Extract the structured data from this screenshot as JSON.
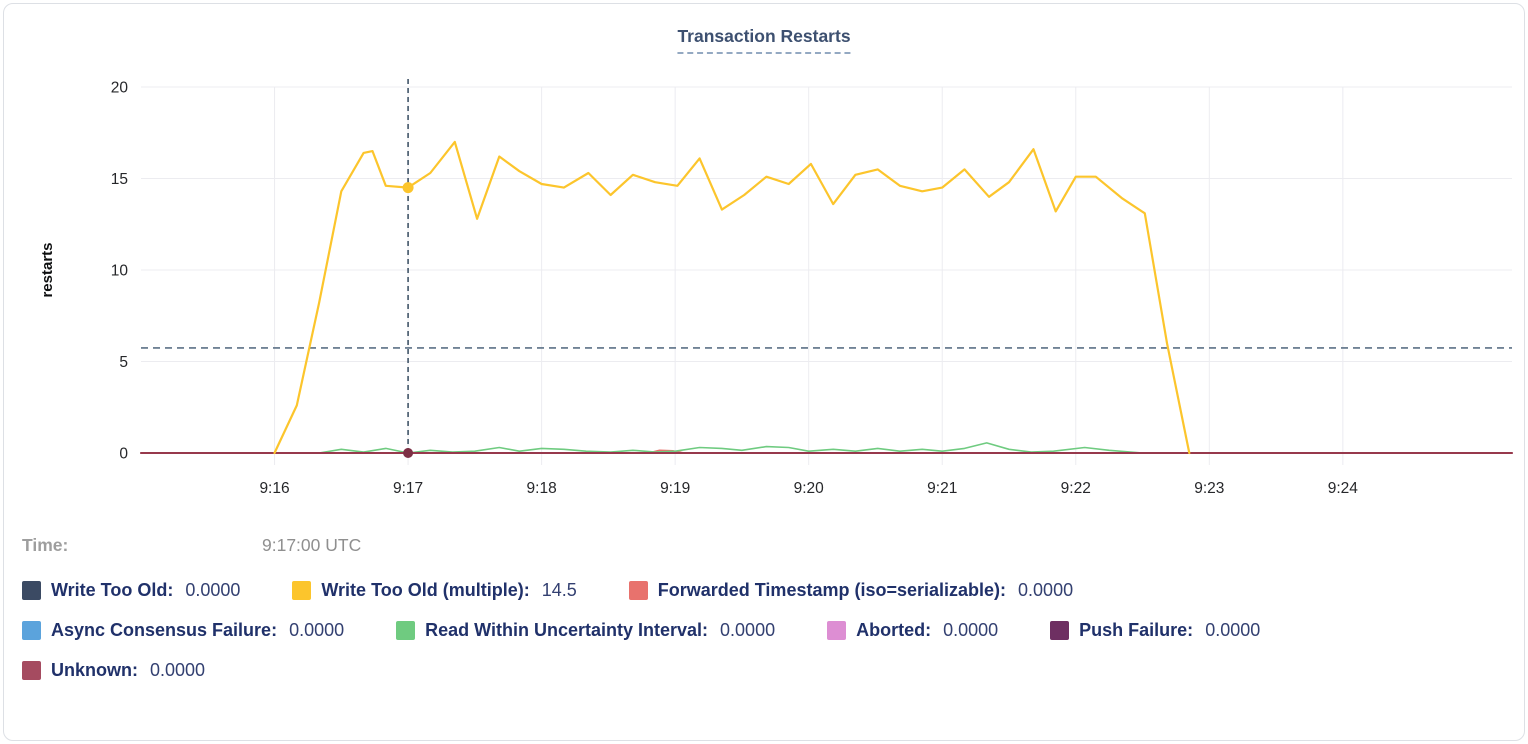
{
  "title": "Transaction Restarts",
  "chart_data": {
    "type": "line",
    "title": "Transaction Restarts",
    "xlabel": "",
    "ylabel": "restarts",
    "ylim": [
      0,
      20
    ],
    "yticks": [
      0,
      5,
      10,
      15,
      20
    ],
    "grid": true,
    "x_base_time": "9:15",
    "xlim_seconds": [
      0,
      616
    ],
    "xticks": [
      {
        "t": 60,
        "label": "9:16"
      },
      {
        "t": 120,
        "label": "9:17"
      },
      {
        "t": 180,
        "label": "9:18"
      },
      {
        "t": 240,
        "label": "9:19"
      },
      {
        "t": 300,
        "label": "9:20"
      },
      {
        "t": 360,
        "label": "9:21"
      },
      {
        "t": 420,
        "label": "9:22"
      },
      {
        "t": 480,
        "label": "9:23"
      },
      {
        "t": 540,
        "label": "9:24"
      }
    ],
    "hline": {
      "value": 5.74,
      "color": "#5c7186",
      "style": "dashed"
    },
    "crosshair": {
      "t": 120,
      "time_label": "9:17:00 UTC",
      "color": "#34495e",
      "dots": [
        {
          "series": "Write Too Old (multiple)",
          "v": 14.5,
          "color": "#fcc52c",
          "r": 5.5
        },
        {
          "series": "Unknown",
          "v": 0,
          "color": "#7d3045",
          "r": 5
        }
      ]
    },
    "series": [
      {
        "name": "Write Too Old",
        "color": "#3b4a63",
        "width": 1.5,
        "points": [
          [
            0,
            0
          ],
          [
            616,
            0
          ]
        ]
      },
      {
        "name": "Async Consensus Failure",
        "color": "#5ba3dc",
        "width": 1.5,
        "points": [
          [
            0,
            0
          ],
          [
            616,
            0
          ]
        ]
      },
      {
        "name": "Aborted",
        "color": "#dd8ed3",
        "width": 1.5,
        "points": [
          [
            0,
            0
          ],
          [
            616,
            0
          ]
        ]
      },
      {
        "name": "Push Failure",
        "color": "#6e2f62",
        "width": 1.5,
        "points": [
          [
            0,
            0
          ],
          [
            616,
            0
          ]
        ]
      },
      {
        "name": "Forwarded Timestamp (iso=serializable)",
        "color": "#e8726d",
        "width": 1.6,
        "points": [
          [
            0,
            0
          ],
          [
            228,
            0
          ],
          [
            233,
            0.15
          ],
          [
            239,
            0.12
          ],
          [
            244,
            0
          ],
          [
            616,
            0
          ]
        ]
      },
      {
        "name": "Read Within Uncertainty Interval",
        "color": "#6fcb80",
        "width": 1.6,
        "points": [
          [
            80,
            0
          ],
          [
            90,
            0.2
          ],
          [
            100,
            0.05
          ],
          [
            110,
            0.25
          ],
          [
            120,
            0
          ],
          [
            130,
            0.15
          ],
          [
            140,
            0.05
          ],
          [
            150,
            0.1
          ],
          [
            161,
            0.3
          ],
          [
            170,
            0.1
          ],
          [
            180,
            0.25
          ],
          [
            190,
            0.2
          ],
          [
            200,
            0.1
          ],
          [
            211,
            0.05
          ],
          [
            221,
            0.15
          ],
          [
            231,
            0.05
          ],
          [
            240,
            0.1
          ],
          [
            251,
            0.3
          ],
          [
            261,
            0.25
          ],
          [
            270,
            0.15
          ],
          [
            281,
            0.35
          ],
          [
            291,
            0.3
          ],
          [
            300,
            0.1
          ],
          [
            311,
            0.2
          ],
          [
            321,
            0.1
          ],
          [
            331,
            0.25
          ],
          [
            341,
            0.1
          ],
          [
            351,
            0.2
          ],
          [
            360,
            0.1
          ],
          [
            370,
            0.25
          ],
          [
            380,
            0.55
          ],
          [
            390,
            0.2
          ],
          [
            400,
            0.05
          ],
          [
            410,
            0.1
          ],
          [
            424,
            0.3
          ],
          [
            435,
            0.15
          ],
          [
            450,
            0
          ]
        ]
      },
      {
        "name": "Unknown",
        "color": "#97394c",
        "width": 2,
        "points": [
          [
            0,
            0
          ],
          [
            616,
            0
          ]
        ]
      },
      {
        "name": "Write Too Old (multiple)",
        "color": "#fcc52c",
        "width": 2.2,
        "points": [
          [
            60,
            0
          ],
          [
            70,
            2.6
          ],
          [
            80,
            8.2
          ],
          [
            90,
            14.3
          ],
          [
            100,
            16.4
          ],
          [
            104,
            16.5
          ],
          [
            110,
            14.6
          ],
          [
            120,
            14.5
          ],
          [
            130,
            15.3
          ],
          [
            141,
            17.0
          ],
          [
            151,
            12.8
          ],
          [
            161,
            16.2
          ],
          [
            170,
            15.4
          ],
          [
            180,
            14.7
          ],
          [
            190,
            14.5
          ],
          [
            201,
            15.3
          ],
          [
            211,
            14.1
          ],
          [
            221,
            15.2
          ],
          [
            231,
            14.8
          ],
          [
            241,
            14.6
          ],
          [
            251,
            16.1
          ],
          [
            261,
            13.3
          ],
          [
            271,
            14.1
          ],
          [
            281,
            15.1
          ],
          [
            291,
            14.7
          ],
          [
            301,
            15.8
          ],
          [
            311,
            13.6
          ],
          [
            321,
            15.2
          ],
          [
            331,
            15.5
          ],
          [
            341,
            14.6
          ],
          [
            351,
            14.3
          ],
          [
            360,
            14.5
          ],
          [
            370,
            15.5
          ],
          [
            381,
            14.0
          ],
          [
            390,
            14.8
          ],
          [
            401,
            16.6
          ],
          [
            411,
            13.2
          ],
          [
            420,
            15.1
          ],
          [
            429,
            15.1
          ],
          [
            441,
            13.9
          ],
          [
            451,
            13.1
          ],
          [
            461,
            6.0
          ],
          [
            471,
            0
          ]
        ]
      }
    ]
  },
  "legend": {
    "time": {
      "label": "Time:",
      "value": "9:17:00 UTC"
    },
    "rows": [
      [
        {
          "label": "Write Too Old:",
          "value": "0.0000",
          "color": "#3b4a63"
        },
        {
          "label": "Write Too Old (multiple):",
          "value": "14.5",
          "color": "#fcc52c"
        },
        {
          "label": "Forwarded Timestamp (iso=serializable):",
          "value": "0.0000",
          "color": "#e8726d"
        }
      ],
      [
        {
          "label": "Async Consensus Failure:",
          "value": "0.0000",
          "color": "#5ba3dc"
        },
        {
          "label": "Read Within Uncertainty Interval:",
          "value": "0.0000",
          "color": "#6fcb80"
        },
        {
          "label": "Aborted:",
          "value": "0.0000",
          "color": "#dd8ed3"
        },
        {
          "label": "Push Failure:",
          "value": "0.0000",
          "color": "#6e2f62"
        }
      ],
      [
        {
          "label": "Unknown:",
          "value": "0.0000",
          "color": "#a54b60"
        }
      ]
    ]
  },
  "colors": {
    "title": "#3d5070",
    "grid": "#ececf0",
    "tick_label": "#26272a",
    "hline": "#5c7186",
    "crosshair": "#34495e"
  }
}
